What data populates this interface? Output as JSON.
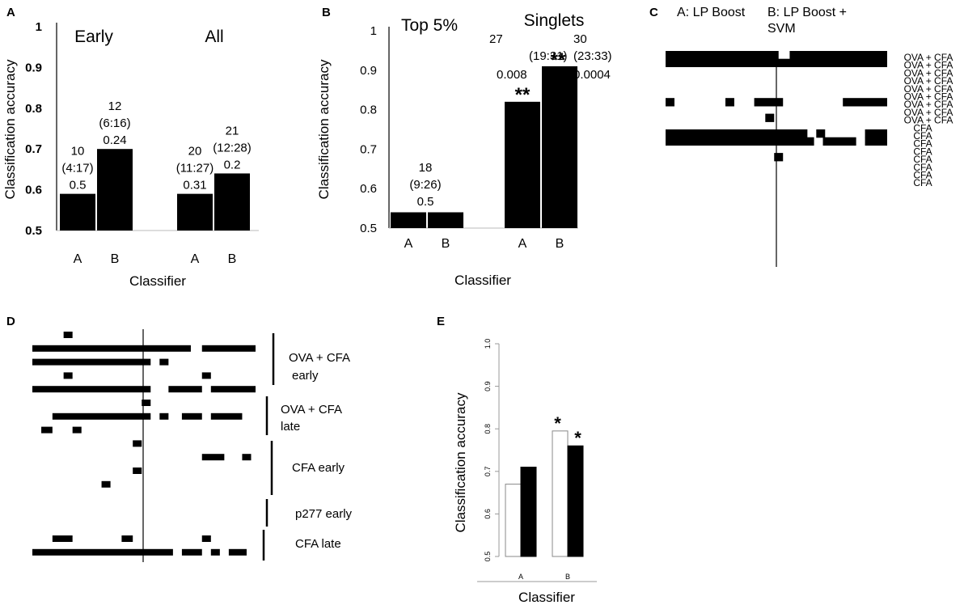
{
  "chart_data": [
    {
      "panel": "A",
      "type": "bar",
      "title": "",
      "xlabel": "Classifier",
      "ylabel": "Classification accuracy",
      "ylim": [
        0.5,
        1
      ],
      "yticks": [
        "0.5",
        "0.6",
        "0.7",
        "0.8",
        "0.9",
        "1"
      ],
      "groups": [
        {
          "name": "Early",
          "bars": [
            {
              "label": "A",
              "value": 0.59,
              "annot": [
                "10",
                "(4:17)",
                "0.5"
              ]
            },
            {
              "label": "B",
              "value": 0.7,
              "annot": [
                "12",
                "(6:16)",
                "0.24"
              ]
            }
          ]
        },
        {
          "name": "All",
          "bars": [
            {
              "label": "A",
              "value": 0.59,
              "annot": [
                "20",
                "(11:27)",
                "0.31"
              ]
            },
            {
              "label": "B",
              "value": 0.64,
              "annot": [
                "21",
                "(12:28)",
                "0.2"
              ]
            }
          ]
        }
      ]
    },
    {
      "panel": "B",
      "type": "bar",
      "title": "",
      "xlabel": "Classifier",
      "ylabel": "Classification accuracy",
      "ylim": [
        0.5,
        1
      ],
      "yticks": [
        "0.5",
        "0.6",
        "0.7",
        "0.8",
        "0.9",
        "1"
      ],
      "groups": [
        {
          "name": "Top 5%",
          "bars": [
            {
              "label": "A",
              "value": 0.54,
              "annot": []
            },
            {
              "label": "B",
              "value": 0.54,
              "annot": []
            }
          ],
          "shared_annot": [
            "18",
            "(9:26)",
            "0.5"
          ]
        },
        {
          "name": "Singlets",
          "bars": [
            {
              "label": "A",
              "value": 0.82,
              "annot": [
                "27",
                "(19:31)",
                "0.008"
              ],
              "sig": "**"
            },
            {
              "label": "B",
              "value": 0.91,
              "annot": [
                "30",
                "(23:33)",
                "0.0004"
              ],
              "sig": "**"
            }
          ]
        }
      ]
    },
    {
      "panel": "C",
      "type": "heatmap",
      "legend": [
        "A: LP Boost",
        "B: LP Boost +",
        "SVM"
      ],
      "rows": [
        "OVA + CFA",
        "OVA + CFA",
        "OVA + CFA",
        "OVA + CFA",
        "OVA + CFA",
        "OVA + CFA",
        "OVA + CFA",
        "OVA + CFA",
        "OVA + CFA",
        "CFA",
        "CFA",
        "CFA",
        "CFA",
        "CFA",
        "CFA",
        "CFA",
        "CFA"
      ],
      "row_segments": [
        [
          [
            0,
            0.51
          ],
          [
            0.56,
            1
          ]
        ],
        [
          [
            0,
            1
          ]
        ],
        [],
        [],
        [],
        [],
        [
          [
            0,
            0.04
          ],
          [
            0.27,
            0.31
          ],
          [
            0.4,
            0.53
          ],
          [
            0.8,
            1
          ]
        ],
        [],
        [
          [
            0.45,
            0.49
          ]
        ],
        [],
        [
          [
            0,
            0.64
          ],
          [
            0.68,
            0.72
          ],
          [
            0.9,
            1
          ]
        ],
        [
          [
            0,
            0.67
          ],
          [
            0.71,
            0.86
          ],
          [
            0.9,
            1
          ]
        ],
        [],
        [
          [
            0.49,
            0.53
          ]
        ],
        [],
        [],
        []
      ]
    },
    {
      "panel": "D",
      "type": "heatmap",
      "groups": [
        "OVA + CFA",
        "early",
        "OVA + CFA",
        "late",
        "CFA early",
        "p277 early",
        "CFA late"
      ],
      "row_segments": [
        [
          [
            0.14,
            0.18
          ]
        ],
        [
          [
            0,
            0.71
          ],
          [
            0.76,
            1
          ]
        ],
        [
          [
            0,
            0.53
          ],
          [
            0.57,
            0.61
          ]
        ],
        [
          [
            0.14,
            0.18
          ],
          [
            0.76,
            0.8
          ]
        ],
        [
          [
            0,
            0.53
          ],
          [
            0.61,
            0.76
          ],
          [
            0.8,
            1
          ]
        ],
        [
          [
            0.49,
            0.53
          ]
        ],
        [
          [
            0.09,
            0.53
          ],
          [
            0.57,
            0.61
          ],
          [
            0.67,
            0.76
          ],
          [
            0.8,
            0.94
          ]
        ],
        [
          [
            0.04,
            0.09
          ],
          [
            0.18,
            0.22
          ]
        ],
        [
          [
            0.45,
            0.49
          ]
        ],
        [
          [
            0.76,
            0.86
          ],
          [
            0.94,
            0.98
          ]
        ],
        [
          [
            0.45,
            0.49
          ]
        ],
        [
          [
            0.31,
            0.35
          ]
        ],
        [],
        [],
        [],
        [
          [
            0.09,
            0.18
          ],
          [
            0.4,
            0.45
          ],
          [
            0.76,
            0.8
          ]
        ],
        [
          [
            0,
            0.63
          ],
          [
            0.67,
            0.76
          ],
          [
            0.8,
            0.84
          ],
          [
            0.88,
            0.96
          ]
        ]
      ]
    },
    {
      "panel": "E",
      "type": "bar",
      "title": "",
      "xlabel": "Classifier",
      "ylabel": "Classification accuracy",
      "ylim": [
        0.5,
        1.0
      ],
      "yticks": [
        "0.5",
        "0.6",
        "0.7",
        "0.8",
        "0.9",
        "1.0"
      ],
      "categories": [
        "A",
        "B"
      ],
      "series": [
        {
          "name": "open",
          "values": [
            0.67,
            0.795
          ],
          "fill": "#ffffff",
          "sig": [
            "",
            "*"
          ]
        },
        {
          "name": "filled",
          "values": [
            0.71,
            0.76
          ],
          "fill": "#000000",
          "sig": [
            "",
            "*"
          ]
        }
      ]
    }
  ],
  "panel_labels": [
    "A",
    "B",
    "C",
    "D",
    "E"
  ]
}
